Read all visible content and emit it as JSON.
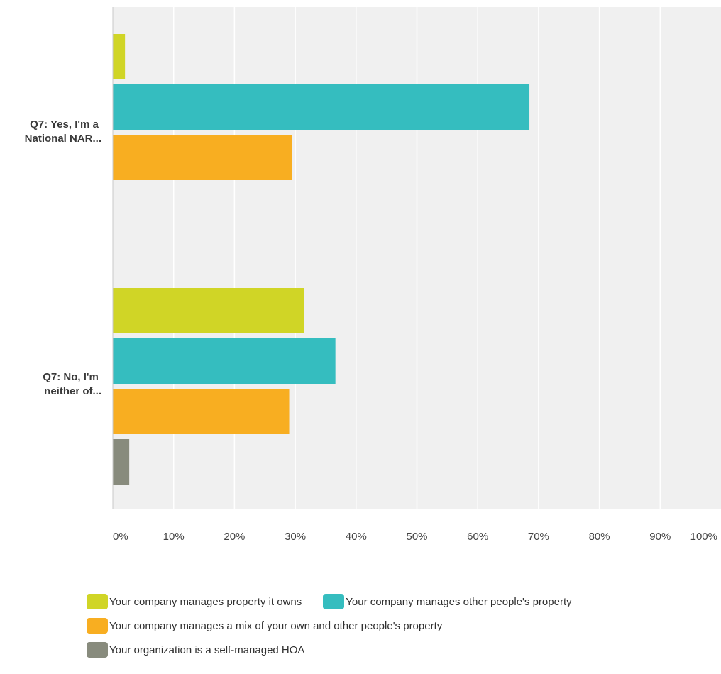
{
  "chart_data": {
    "type": "bar",
    "orientation": "horizontal",
    "categories": [
      "Q7: Yes, I'm a National NAR...",
      "Q7: No, I'm neither of..."
    ],
    "category_label_lines": [
      [
        "Q7: Yes, I'm a",
        "National NAR..."
      ],
      [
        "Q7: No, I'm",
        "neither of..."
      ]
    ],
    "series": [
      {
        "name": "Your company manages property it owns",
        "color": "#d0d526",
        "values": [
          2.0,
          31.5
        ]
      },
      {
        "name": "Your company manages other people's property",
        "color": "#35bdbf",
        "values": [
          68.5,
          36.6
        ]
      },
      {
        "name": "Your company manages a mix of your own and other people's property",
        "color": "#f8ae21",
        "values": [
          29.5,
          29.0
        ]
      },
      {
        "name": "Your organization is a self-managed HOA",
        "color": "#888b7d",
        "values": [
          null,
          2.7
        ]
      }
    ],
    "xlim": [
      0,
      100
    ],
    "xticks": [
      "0%",
      "10%",
      "20%",
      "30%",
      "40%",
      "50%",
      "60%",
      "70%",
      "80%",
      "90%",
      "100%"
    ],
    "grid": true,
    "legend_position": "bottom",
    "plot_background": "#f0f0f0",
    "grid_color": "#ffffff"
  },
  "legend_rows": [
    [
      0,
      1
    ],
    [
      2
    ],
    [
      3
    ]
  ]
}
